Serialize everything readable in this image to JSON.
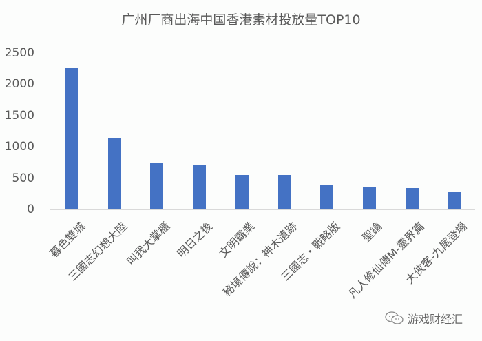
{
  "chart_data": {
    "type": "bar",
    "title": "广州厂商出海中国香港素材投放量TOP10",
    "xlabel": "",
    "ylabel": "",
    "ylim": [
      0,
      2500
    ],
    "yticks": [
      "2500",
      "2000",
      "1500",
      "1000",
      "500",
      "0"
    ],
    "grid": false,
    "legend": null,
    "categories": [
      "暮色雙城",
      "三國志幻想大陸",
      "叫我大掌櫃",
      "明日之後",
      "文明霸業",
      "秘境傳說：神木遺跡",
      "三國志・戰略版",
      "聖鑰",
      "凡人修仙傳M-靈界篇",
      "大俠客-九尾登場"
    ],
    "values": [
      2260,
      1145,
      740,
      705,
      550,
      550,
      385,
      365,
      340,
      275
    ],
    "bar_color": "#4472c4"
  },
  "watermark": {
    "text": "游戏财经汇",
    "icon": "wechat-icon"
  }
}
